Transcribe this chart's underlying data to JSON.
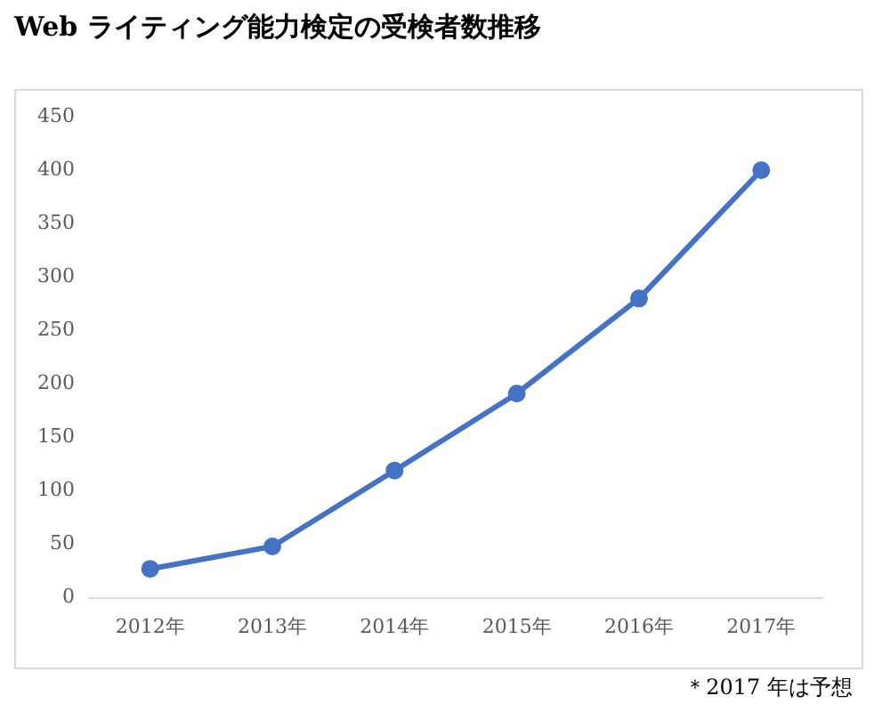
{
  "chart_data": {
    "type": "line",
    "title": "Web ライティング能力検定の受検者数推移",
    "categories": [
      "2012年",
      "2013年",
      "2014年",
      "2015年",
      "2016年",
      "2017年"
    ],
    "series": [
      {
        "color": "#4472c4",
        "values": [
          27,
          48,
          119,
          191,
          280,
          400
        ]
      }
    ],
    "ylim": [
      0,
      450
    ],
    "yticks": [
      0,
      50,
      100,
      150,
      200,
      250,
      300,
      350,
      400,
      450
    ],
    "grid": false,
    "legend": false,
    "marker": "circle",
    "line_style": "solid",
    "annotations": [
      "＊2017 年は予想"
    ]
  }
}
